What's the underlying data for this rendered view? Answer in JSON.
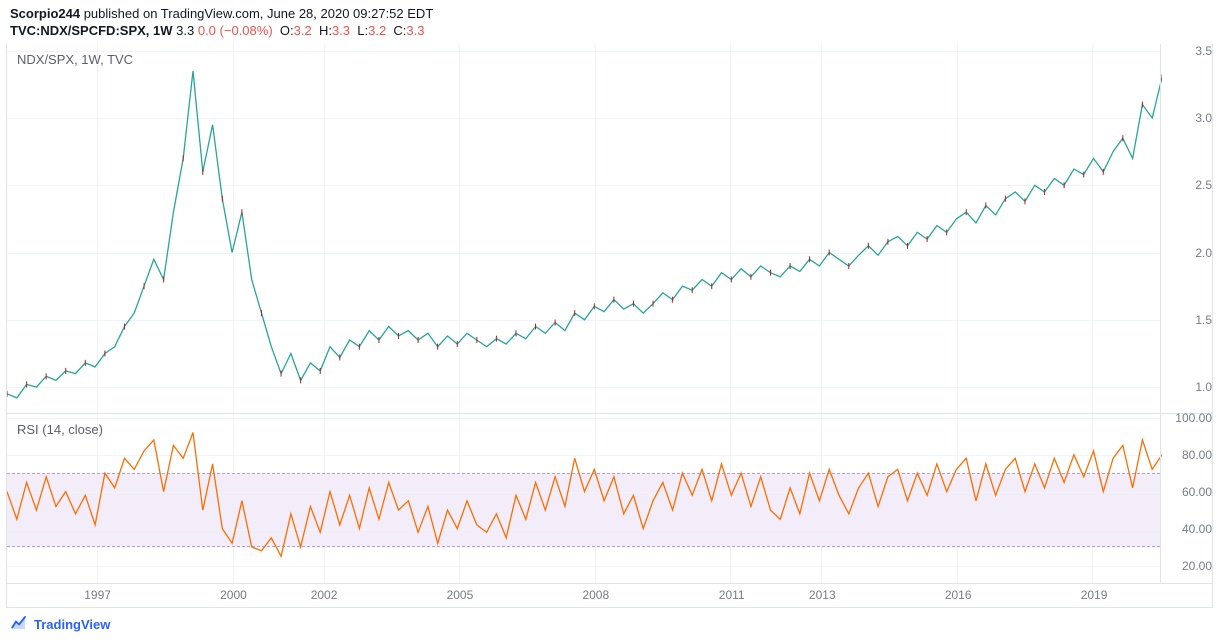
{
  "header": {
    "author": "Scorpio244",
    "pub_text": " published on TradingView.com, June 28, 2020 09:27:52 EDT"
  },
  "sub": {
    "symbol": "TVC:NDX/SPCFD:SPX, 1W",
    "last": "3.3",
    "chg": "0.0",
    "chg_pct": "(−0.08%)",
    "o_lbl": "O:",
    "o": "3.2",
    "h_lbl": "H:",
    "h": "3.3",
    "l_lbl": "L:",
    "l": "3.2",
    "c_lbl": "C:",
    "c": "3.3"
  },
  "main_chart": {
    "label": "NDX/SPX, 1W, TVC",
    "type": "line",
    "stroke_color": "#26a69a",
    "stroke_color2": "#b71c1c",
    "background_color": "#ffffff",
    "grid_color": "#f0f3fa",
    "y_ticks": [
      1.0,
      1.5,
      2.0,
      2.5,
      3.0,
      3.5
    ],
    "ymin": 0.8,
    "ymax": 3.55,
    "series": [
      [
        0,
        0.95
      ],
      [
        2,
        0.92
      ],
      [
        4,
        1.02
      ],
      [
        6,
        1.0
      ],
      [
        8,
        1.08
      ],
      [
        10,
        1.05
      ],
      [
        12,
        1.12
      ],
      [
        14,
        1.1
      ],
      [
        16,
        1.18
      ],
      [
        18,
        1.15
      ],
      [
        20,
        1.25
      ],
      [
        22,
        1.3
      ],
      [
        24,
        1.45
      ],
      [
        26,
        1.55
      ],
      [
        28,
        1.75
      ],
      [
        30,
        1.95
      ],
      [
        32,
        1.8
      ],
      [
        34,
        2.3
      ],
      [
        36,
        2.7
      ],
      [
        38,
        3.35
      ],
      [
        40,
        2.6
      ],
      [
        42,
        2.95
      ],
      [
        44,
        2.4
      ],
      [
        46,
        2.0
      ],
      [
        48,
        2.3
      ],
      [
        50,
        1.8
      ],
      [
        52,
        1.55
      ],
      [
        54,
        1.3
      ],
      [
        56,
        1.1
      ],
      [
        58,
        1.25
      ],
      [
        60,
        1.05
      ],
      [
        62,
        1.18
      ],
      [
        64,
        1.12
      ],
      [
        66,
        1.3
      ],
      [
        68,
        1.22
      ],
      [
        70,
        1.35
      ],
      [
        72,
        1.3
      ],
      [
        74,
        1.42
      ],
      [
        76,
        1.35
      ],
      [
        78,
        1.45
      ],
      [
        80,
        1.38
      ],
      [
        82,
        1.42
      ],
      [
        84,
        1.35
      ],
      [
        86,
        1.4
      ],
      [
        88,
        1.3
      ],
      [
        90,
        1.38
      ],
      [
        92,
        1.32
      ],
      [
        94,
        1.4
      ],
      [
        96,
        1.35
      ],
      [
        98,
        1.3
      ],
      [
        100,
        1.36
      ],
      [
        102,
        1.32
      ],
      [
        104,
        1.4
      ],
      [
        106,
        1.36
      ],
      [
        108,
        1.45
      ],
      [
        110,
        1.4
      ],
      [
        112,
        1.48
      ],
      [
        114,
        1.42
      ],
      [
        116,
        1.55
      ],
      [
        118,
        1.5
      ],
      [
        120,
        1.6
      ],
      [
        122,
        1.56
      ],
      [
        124,
        1.65
      ],
      [
        126,
        1.58
      ],
      [
        128,
        1.62
      ],
      [
        130,
        1.55
      ],
      [
        132,
        1.62
      ],
      [
        134,
        1.7
      ],
      [
        136,
        1.65
      ],
      [
        138,
        1.75
      ],
      [
        140,
        1.72
      ],
      [
        142,
        1.8
      ],
      [
        144,
        1.75
      ],
      [
        146,
        1.85
      ],
      [
        148,
        1.8
      ],
      [
        150,
        1.88
      ],
      [
        152,
        1.82
      ],
      [
        154,
        1.9
      ],
      [
        156,
        1.85
      ],
      [
        158,
        1.82
      ],
      [
        160,
        1.9
      ],
      [
        162,
        1.86
      ],
      [
        164,
        1.95
      ],
      [
        166,
        1.9
      ],
      [
        168,
        2.0
      ],
      [
        170,
        1.95
      ],
      [
        172,
        1.9
      ],
      [
        174,
        1.98
      ],
      [
        176,
        2.05
      ],
      [
        178,
        1.98
      ],
      [
        180,
        2.08
      ],
      [
        182,
        2.12
      ],
      [
        184,
        2.05
      ],
      [
        186,
        2.15
      ],
      [
        188,
        2.1
      ],
      [
        190,
        2.2
      ],
      [
        192,
        2.15
      ],
      [
        194,
        2.25
      ],
      [
        196,
        2.3
      ],
      [
        198,
        2.22
      ],
      [
        200,
        2.35
      ],
      [
        202,
        2.28
      ],
      [
        204,
        2.4
      ],
      [
        206,
        2.45
      ],
      [
        208,
        2.38
      ],
      [
        210,
        2.5
      ],
      [
        212,
        2.45
      ],
      [
        214,
        2.55
      ],
      [
        216,
        2.5
      ],
      [
        218,
        2.62
      ],
      [
        220,
        2.58
      ],
      [
        222,
        2.7
      ],
      [
        224,
        2.6
      ],
      [
        226,
        2.75
      ],
      [
        228,
        2.85
      ],
      [
        230,
        2.7
      ],
      [
        232,
        3.1
      ],
      [
        234,
        3.0
      ],
      [
        236,
        3.3
      ]
    ]
  },
  "rsi_chart": {
    "label": "RSI (14, close)",
    "type": "line",
    "stroke_color": "#ff6d00",
    "band_fill": "#f3edf9",
    "band_border": "#b39ddb",
    "y_ticks": [
      20,
      40,
      60,
      80,
      100
    ],
    "ymin": 10,
    "ymax": 102,
    "band_low": 30,
    "band_high": 70,
    "series": [
      [
        0,
        60
      ],
      [
        2,
        45
      ],
      [
        4,
        65
      ],
      [
        6,
        50
      ],
      [
        8,
        68
      ],
      [
        10,
        52
      ],
      [
        12,
        60
      ],
      [
        14,
        48
      ],
      [
        16,
        58
      ],
      [
        18,
        42
      ],
      [
        20,
        70
      ],
      [
        22,
        62
      ],
      [
        24,
        78
      ],
      [
        26,
        72
      ],
      [
        28,
        82
      ],
      [
        30,
        88
      ],
      [
        32,
        60
      ],
      [
        34,
        85
      ],
      [
        36,
        78
      ],
      [
        38,
        92
      ],
      [
        40,
        50
      ],
      [
        42,
        75
      ],
      [
        44,
        40
      ],
      [
        46,
        32
      ],
      [
        48,
        55
      ],
      [
        50,
        30
      ],
      [
        52,
        28
      ],
      [
        54,
        35
      ],
      [
        56,
        25
      ],
      [
        58,
        48
      ],
      [
        60,
        30
      ],
      [
        62,
        52
      ],
      [
        64,
        38
      ],
      [
        66,
        60
      ],
      [
        68,
        42
      ],
      [
        70,
        58
      ],
      [
        72,
        40
      ],
      [
        74,
        62
      ],
      [
        76,
        45
      ],
      [
        78,
        65
      ],
      [
        80,
        50
      ],
      [
        82,
        55
      ],
      [
        84,
        38
      ],
      [
        86,
        52
      ],
      [
        88,
        32
      ],
      [
        90,
        50
      ],
      [
        92,
        40
      ],
      [
        94,
        55
      ],
      [
        96,
        42
      ],
      [
        98,
        38
      ],
      [
        100,
        48
      ],
      [
        102,
        35
      ],
      [
        104,
        58
      ],
      [
        106,
        45
      ],
      [
        108,
        65
      ],
      [
        110,
        50
      ],
      [
        112,
        68
      ],
      [
        114,
        52
      ],
      [
        116,
        78
      ],
      [
        118,
        60
      ],
      [
        120,
        72
      ],
      [
        122,
        55
      ],
      [
        124,
        68
      ],
      [
        126,
        48
      ],
      [
        128,
        58
      ],
      [
        130,
        40
      ],
      [
        132,
        55
      ],
      [
        134,
        65
      ],
      [
        136,
        50
      ],
      [
        138,
        70
      ],
      [
        140,
        58
      ],
      [
        142,
        72
      ],
      [
        144,
        55
      ],
      [
        146,
        75
      ],
      [
        148,
        58
      ],
      [
        150,
        70
      ],
      [
        152,
        52
      ],
      [
        154,
        68
      ],
      [
        156,
        50
      ],
      [
        158,
        45
      ],
      [
        160,
        62
      ],
      [
        162,
        48
      ],
      [
        164,
        70
      ],
      [
        166,
        55
      ],
      [
        168,
        72
      ],
      [
        170,
        58
      ],
      [
        172,
        48
      ],
      [
        174,
        62
      ],
      [
        176,
        70
      ],
      [
        178,
        52
      ],
      [
        180,
        68
      ],
      [
        182,
        72
      ],
      [
        184,
        55
      ],
      [
        186,
        70
      ],
      [
        188,
        58
      ],
      [
        190,
        75
      ],
      [
        192,
        60
      ],
      [
        194,
        72
      ],
      [
        196,
        78
      ],
      [
        198,
        55
      ],
      [
        200,
        75
      ],
      [
        202,
        58
      ],
      [
        204,
        72
      ],
      [
        206,
        78
      ],
      [
        208,
        60
      ],
      [
        210,
        75
      ],
      [
        212,
        62
      ],
      [
        214,
        78
      ],
      [
        216,
        65
      ],
      [
        218,
        80
      ],
      [
        220,
        68
      ],
      [
        222,
        82
      ],
      [
        224,
        60
      ],
      [
        226,
        78
      ],
      [
        228,
        85
      ],
      [
        230,
        62
      ],
      [
        232,
        88
      ],
      [
        234,
        72
      ],
      [
        236,
        80
      ]
    ]
  },
  "x_axis": {
    "ticks": [
      1997,
      2000,
      2002,
      2005,
      2008,
      2011,
      2013,
      2016,
      2019
    ],
    "xmin": 1995.0,
    "xmax": 2020.5
  },
  "footer": {
    "brand": "TradingView"
  },
  "colors": {
    "text": "#131722",
    "muted": "#787b86",
    "border": "#e0e3eb",
    "link": "#2962ff",
    "neg": "#ef5350"
  }
}
